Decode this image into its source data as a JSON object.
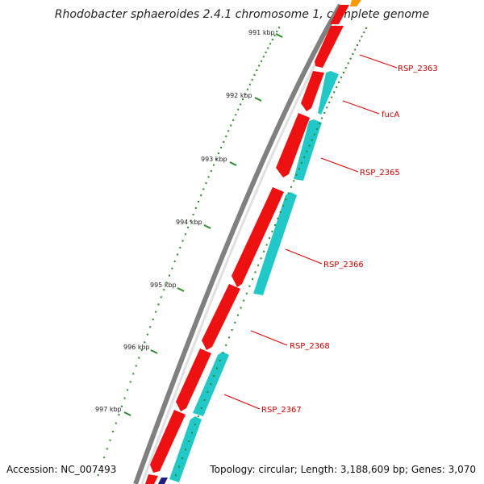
{
  "title": "Rhodobacter sphaeroides 2.4.1 chromosome 1, complete genome",
  "accession": "Accession: NC_007493",
  "topology": "Topology: circular; Length: 3,188,609 bp; Genes: 3,070",
  "colors": {
    "forward_gene": "#ee1111",
    "reverse_gene": "#22c8c8",
    "backbone": "#808080",
    "tick": "#2a8a2a",
    "gene_label": "#cc0000",
    "leader_line": "#dd0000"
  },
  "ruler": [
    {
      "label": "991 kbp"
    },
    {
      "label": "992 kbp"
    },
    {
      "label": "993 kbp"
    },
    {
      "label": "994 kbp"
    },
    {
      "label": "995 kbp"
    },
    {
      "label": "996 kbp"
    },
    {
      "label": "997 kbp"
    }
  ],
  "gene_labels": [
    {
      "label": "RSP_2363"
    },
    {
      "label": "fucA"
    },
    {
      "label": "RSP_2365"
    },
    {
      "label": "RSP_2366"
    },
    {
      "label": "RSP_2368"
    },
    {
      "label": "RSP_2367"
    }
  ]
}
